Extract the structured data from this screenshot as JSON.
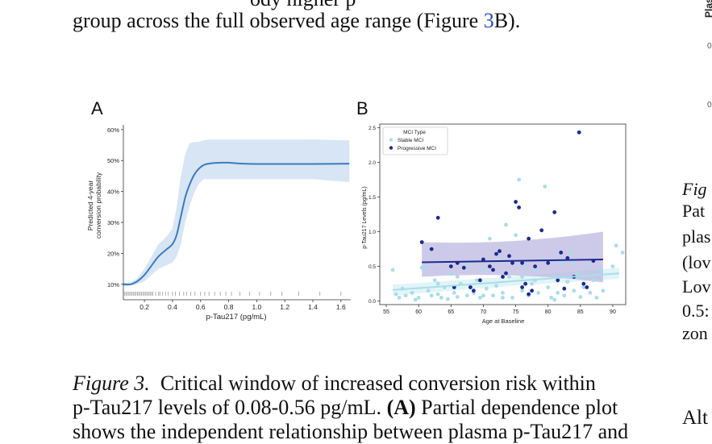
{
  "top_text": {
    "partial": "ody higher p",
    "line2_prefix": "group across the full observed age range (Figure ",
    "line2_ref": "3",
    "line2_suffix": "B)."
  },
  "panel_a": {
    "letter": "A",
    "chart_data": {
      "type": "line",
      "title": "",
      "xlabel": "p-Tau217 (pg/mL)",
      "ylabel": "Predicted 4-year\nconversion probability",
      "ylabel_line1": "Predicted 4-year",
      "ylabel_line2": "conversion probability",
      "xlim": [
        0.05,
        1.67
      ],
      "ylim": [
        0.05,
        0.61
      ],
      "xticks": [
        0.2,
        0.4,
        0.6,
        0.8,
        1.0,
        1.2,
        1.4,
        1.6
      ],
      "xtick_labels": [
        "0.2",
        "0.4",
        "0.6",
        "0.8",
        "1.0",
        "1.2",
        "1.4",
        "1.6"
      ],
      "yticks": [
        0.1,
        0.2,
        0.3,
        0.4,
        0.5,
        0.6
      ],
      "ytick_labels": [
        "10%",
        "20%",
        "30%",
        "40%",
        "50%",
        "60%"
      ],
      "series": [
        {
          "x": [
            0.05,
            0.1,
            0.15,
            0.2,
            0.25,
            0.3,
            0.35,
            0.4,
            0.43,
            0.46,
            0.49,
            0.52,
            0.55,
            0.58,
            0.62,
            0.66,
            0.7,
            0.75,
            0.8,
            0.9,
            1.0,
            1.2,
            1.4,
            1.66
          ],
          "y": [
            0.1,
            0.1,
            0.11,
            0.13,
            0.16,
            0.19,
            0.21,
            0.23,
            0.26,
            0.32,
            0.38,
            0.42,
            0.45,
            0.47,
            0.485,
            0.49,
            0.492,
            0.493,
            0.493,
            0.49,
            0.489,
            0.489,
            0.489,
            0.49
          ],
          "lower": [
            0.095,
            0.095,
            0.1,
            0.11,
            0.13,
            0.15,
            0.16,
            0.17,
            0.19,
            0.23,
            0.3,
            0.35,
            0.39,
            0.42,
            0.44,
            0.44,
            0.44,
            0.44,
            0.44,
            0.44,
            0.44,
            0.44,
            0.44,
            0.43
          ],
          "upper": [
            0.105,
            0.105,
            0.12,
            0.15,
            0.19,
            0.23,
            0.25,
            0.28,
            0.35,
            0.45,
            0.52,
            0.555,
            0.56,
            0.56,
            0.565,
            0.568,
            0.568,
            0.568,
            0.568,
            0.568,
            0.568,
            0.568,
            0.568,
            0.565
          ]
        }
      ],
      "rug_x": [
        0.06,
        0.07,
        0.08,
        0.09,
        0.1,
        0.11,
        0.12,
        0.13,
        0.14,
        0.15,
        0.16,
        0.17,
        0.18,
        0.19,
        0.2,
        0.21,
        0.22,
        0.23,
        0.24,
        0.25,
        0.26,
        0.28,
        0.3,
        0.31,
        0.33,
        0.35,
        0.37,
        0.4,
        0.42,
        0.45,
        0.48,
        0.5,
        0.53,
        0.56,
        0.6,
        0.63,
        0.66,
        0.7,
        0.74,
        0.78,
        0.82,
        0.88,
        0.95,
        1.02,
        1.1,
        1.18,
        1.3,
        1.45,
        1.6
      ],
      "colors": {
        "line": "#3b7bbd",
        "band": "#c9dcf0",
        "rug": "#999999"
      }
    }
  },
  "panel_b": {
    "letter": "B",
    "chart_data": {
      "type": "scatter",
      "title": "",
      "xlabel": "Age at Baseline",
      "ylabel": "p-Tau217 Levels (pg/mL)",
      "xlim": [
        54,
        92
      ],
      "ylim": [
        -0.05,
        2.55
      ],
      "xticks": [
        55,
        60,
        65,
        70,
        75,
        80,
        85,
        90
      ],
      "xtick_labels": [
        "55",
        "60",
        "65",
        "70",
        "75",
        "80",
        "85",
        "90"
      ],
      "yticks": [
        0.0,
        0.5,
        1.0,
        1.5,
        2.0,
        2.5
      ],
      "ytick_labels": [
        "0.0",
        "0.5",
        "1.0",
        "1.5",
        "2.0",
        "2.5"
      ],
      "legend": {
        "title": "MCI Type",
        "position": "top-left"
      },
      "series": [
        {
          "name": "Stable MCI",
          "color": "#a8dde8",
          "points": [
            [
              56,
              0.45
            ],
            [
              56.5,
              0.1
            ],
            [
              57,
              0.05
            ],
            [
              58,
              0.08
            ],
            [
              59,
              0.12
            ],
            [
              59.5,
              0.02
            ],
            [
              60,
              0.05
            ],
            [
              60.5,
              0.48
            ],
            [
              61,
              0.5
            ],
            [
              61.5,
              0.15
            ],
            [
              62,
              0.08
            ],
            [
              62.5,
              0.3
            ],
            [
              63,
              0.1
            ],
            [
              63.5,
              0.05
            ],
            [
              64,
              0.2
            ],
            [
              64.5,
              0.03
            ],
            [
              65,
              0.4
            ],
            [
              65.5,
              0.12
            ],
            [
              66,
              0.06
            ],
            [
              66.5,
              0.25
            ],
            [
              67,
              0.5
            ],
            [
              67.5,
              0.08
            ],
            [
              68,
              0.55
            ],
            [
              68.5,
              0.12
            ],
            [
              69,
              0.3
            ],
            [
              69.5,
              0.05
            ],
            [
              70,
              0.45
            ],
            [
              70.5,
              0.18
            ],
            [
              71,
              0.9
            ],
            [
              71.5,
              0.08
            ],
            [
              72,
              0.22
            ],
            [
              72.5,
              0.6
            ],
            [
              73,
              0.12
            ],
            [
              73.5,
              1.1
            ],
            [
              74,
              0.35
            ],
            [
              74.5,
              0.05
            ],
            [
              75,
              0.95
            ],
            [
              75.5,
              1.75
            ],
            [
              76,
              0.15
            ],
            [
              76.5,
              0.5
            ],
            [
              77,
              0.08
            ],
            [
              77.5,
              0.25
            ],
            [
              78,
              0.45
            ],
            [
              78.5,
              0.12
            ],
            [
              79,
              0.6
            ],
            [
              79.5,
              1.65
            ],
            [
              80,
              0.2
            ],
            [
              80.5,
              0.05
            ],
            [
              81,
              0.35
            ],
            [
              81.5,
              0.12
            ],
            [
              82,
              0.55
            ],
            [
              82.5,
              0.08
            ],
            [
              83,
              0.28
            ],
            [
              83.5,
              0.7
            ],
            [
              84,
              0.15
            ],
            [
              84.5,
              0.4
            ],
            [
              85,
              0.06
            ],
            [
              85.5,
              0.2
            ],
            [
              86,
              0.5
            ],
            [
              86.5,
              0.12
            ],
            [
              87,
              0.3
            ],
            [
              87.5,
              0.05
            ],
            [
              88,
              0.45
            ],
            [
              90,
              0.5
            ],
            [
              90.5,
              0.8
            ],
            [
              91.5,
              0.7
            ],
            [
              57.5,
              0.18
            ],
            [
              66,
              0.35
            ],
            [
              73,
              0.05
            ],
            [
              78,
              0.3
            ],
            [
              81,
              0.02
            ],
            [
              84,
              0.55
            ],
            [
              76,
              0.35
            ],
            [
              70,
              0.08
            ],
            [
              68,
              0.2
            ],
            [
              63,
              0.25
            ],
            [
              88.5,
              0.15
            ]
          ]
        },
        {
          "name": "Progressive MCI",
          "color": "#1c2a8c",
          "points": [
            [
              60.5,
              0.85
            ],
            [
              62,
              0.75
            ],
            [
              63,
              1.2
            ],
            [
              65,
              0.5
            ],
            [
              66,
              0.55
            ],
            [
              67,
              0.48
            ],
            [
              68,
              0.2
            ],
            [
              68.5,
              0.15
            ],
            [
              70,
              0.6
            ],
            [
              71,
              0.5
            ],
            [
              71.5,
              0.45
            ],
            [
              72,
              0.68
            ],
            [
              72.5,
              0.72
            ],
            [
              73,
              0.35
            ],
            [
              73.5,
              0.4
            ],
            [
              74,
              0.65
            ],
            [
              74.5,
              0.55
            ],
            [
              75,
              1.43
            ],
            [
              75.5,
              1.35
            ],
            [
              76,
              0.55
            ],
            [
              76,
              0.2
            ],
            [
              76.5,
              0.25
            ],
            [
              77,
              0.9
            ],
            [
              77.5,
              0.15
            ],
            [
              78,
              0.5
            ],
            [
              79,
              1.02
            ],
            [
              80,
              0.55
            ],
            [
              81,
              1.28
            ],
            [
              81.5,
              0.3
            ],
            [
              82,
              0.7
            ],
            [
              82.5,
              0.18
            ],
            [
              83,
              0.62
            ],
            [
              84,
              0.35
            ],
            [
              84.8,
              2.43
            ],
            [
              85.5,
              0.25
            ],
            [
              86,
              0.2
            ],
            [
              87,
              0.58
            ],
            [
              65.5,
              0.2
            ],
            [
              69.5,
              0.3
            ],
            [
              77,
              0.1
            ]
          ]
        }
      ],
      "regression_lines": [
        {
          "series": "Stable MCI",
          "x": [
            56,
            91
          ],
          "y": [
            0.16,
            0.4
          ],
          "lower_band": [
            0.08,
            0.32
          ],
          "upper_band": [
            0.24,
            0.48
          ],
          "color": "#a8dde8",
          "band_color": "#d6eff5"
        },
        {
          "series": "Progressive MCI",
          "x": [
            60.5,
            88.5
          ],
          "y": [
            0.56,
            0.6
          ],
          "lower_band": [
            0.35,
            0.27
          ],
          "upper_band": [
            0.85,
            1.0
          ],
          "color": "#1c2a8c",
          "band_color": "#b8b3e0"
        }
      ]
    }
  },
  "right_column": {
    "rotated_label": "Plasm",
    "tick_0a": "0",
    "tick_0b": "0",
    "lines": [
      "Fig",
      "Pat",
      "plas",
      "(lov",
      "Lov",
      "0.5:",
      "zon"
    ],
    "bottom_line": "Alt"
  },
  "caption": {
    "label": "Figure 3.",
    "line1_text": "  Critical window of increased conversion risk within",
    "line2_prefix": "p-Tau217 levels of 0.08-0.56 pg/mL. ",
    "line2_bold": "(A)",
    "line2_suffix": " Partial dependence plot",
    "line3": "shows the independent relationship between plasma p-Tau217 and"
  }
}
